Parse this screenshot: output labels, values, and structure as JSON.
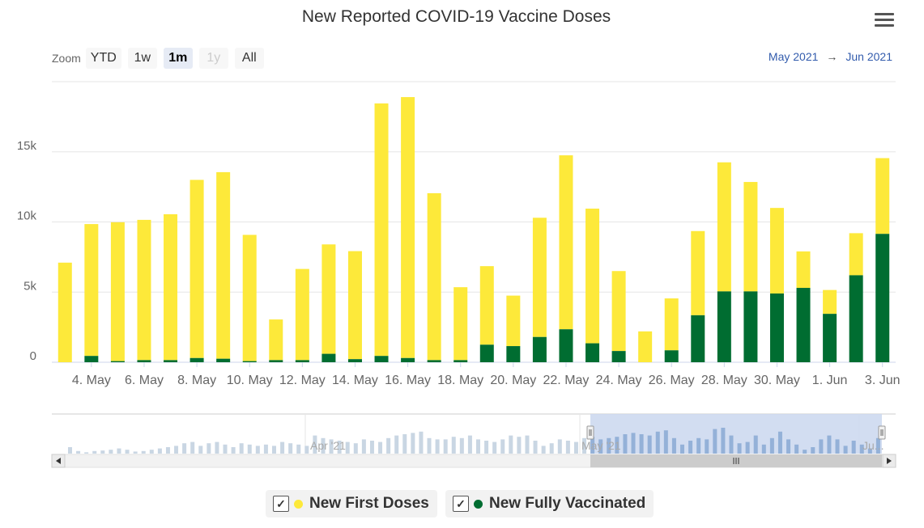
{
  "title": "New Reported COVID-19 Vaccine Doses",
  "menu_icon": "hamburger-menu-icon",
  "zoom": {
    "label": "Zoom",
    "buttons": [
      {
        "label": "YTD",
        "state": "normal"
      },
      {
        "label": "1w",
        "state": "normal"
      },
      {
        "label": "1m",
        "state": "active"
      },
      {
        "label": "1y",
        "state": "disabled"
      },
      {
        "label": "All",
        "state": "normal"
      }
    ]
  },
  "range": {
    "from": "May 2021",
    "arrow": "→",
    "to": "Jun 2021"
  },
  "colors": {
    "first": "#fde93a",
    "full": "#006d31",
    "grid": "#e6e6e6",
    "navigator_bar": "#c9d6e3",
    "navigator_mask": "#cdd9ef"
  },
  "legend": [
    {
      "label": "New First Doses",
      "color": "#fde93a",
      "checked": true
    },
    {
      "label": "New Fully Vaccinated",
      "color": "#006d31",
      "checked": true
    }
  ],
  "chart_data": {
    "type": "bar",
    "stacked": true,
    "title": "New Reported COVID-19 Vaccine Doses",
    "xlabel": "",
    "ylabel": "",
    "ylim": [
      0,
      20000
    ],
    "y_ticks": [
      "0",
      "5k",
      "10k",
      "15k"
    ],
    "x_ticks": [
      "4. May",
      "6. May",
      "8. May",
      "10. May",
      "12. May",
      "14. May",
      "16. May",
      "18. May",
      "20. May",
      "22. May",
      "24. May",
      "26. May",
      "28. May",
      "30. May",
      "1. Jun",
      "3. Jun"
    ],
    "categories": [
      "3. May",
      "4. May",
      "5. May",
      "6. May",
      "7. May",
      "8. May",
      "9. May",
      "10. May",
      "11. May",
      "12. May",
      "13. May",
      "14. May",
      "15. May",
      "16. May",
      "17. May",
      "18. May",
      "19. May",
      "20. May",
      "21. May",
      "22. May",
      "23. May",
      "24. May",
      "25. May",
      "26. May",
      "27. May",
      "28. May",
      "29. May",
      "30. May",
      "31. May",
      "1. Jun",
      "2. Jun",
      "3. Jun"
    ],
    "series": [
      {
        "name": "New First Doses",
        "values": [
          7100,
          9400,
          9900,
          10000,
          10400,
          12700,
          13300,
          9000,
          2900,
          6500,
          7800,
          7700,
          18000,
          18600,
          11900,
          5200,
          5600,
          3600,
          8500,
          12400,
          9600,
          5700,
          2200,
          3700,
          6000,
          9200,
          7800,
          6100,
          2600,
          1700,
          3000,
          5400
        ]
      },
      {
        "name": "New Fully Vaccinated",
        "values": [
          0,
          450,
          80,
          150,
          150,
          300,
          250,
          80,
          150,
          150,
          600,
          220,
          450,
          300,
          150,
          150,
          1250,
          1150,
          1800,
          2350,
          1350,
          800,
          0,
          850,
          3350,
          5050,
          5050,
          4900,
          5300,
          3450,
          6200,
          9150
        ]
      }
    ],
    "grid": true,
    "legend_position": "bottom-center",
    "navigator": {
      "labels": [
        "Apr '21",
        "May '21",
        "Ju..."
      ],
      "values": [
        0.25,
        0.1,
        0.05,
        0.1,
        0.12,
        0.15,
        0.2,
        0.15,
        0.08,
        0.1,
        0.15,
        0.2,
        0.25,
        0.3,
        0.4,
        0.45,
        0.3,
        0.4,
        0.45,
        0.35,
        0.25,
        0.4,
        0.35,
        0.3,
        0.35,
        0.3,
        0.45,
        0.4,
        0.35,
        0.3,
        0.7,
        0.6,
        0.55,
        0.5,
        0.45,
        0.4,
        0.55,
        0.5,
        0.45,
        0.6,
        0.7,
        0.75,
        0.8,
        0.85,
        0.6,
        0.55,
        0.55,
        0.65,
        0.6,
        0.7,
        0.55,
        0.5,
        0.45,
        0.55,
        0.7,
        0.65,
        0.7,
        0.5,
        0.3,
        0.4,
        0.55,
        0.5,
        0.45,
        0.6,
        0.65,
        0.55,
        0.6,
        0.65,
        0.75,
        0.8,
        0.75,
        0.7,
        0.85,
        0.9,
        0.6,
        0.35,
        0.5,
        0.6,
        0.55,
        0.95,
        1.0,
        0.7,
        0.4,
        0.45,
        0.7,
        0.35,
        0.6,
        0.85,
        0.55,
        0.35,
        0.15,
        0.25,
        0.55,
        0.7,
        0.55,
        0.3,
        0.5,
        0.35,
        0.2,
        0.6
      ]
    }
  }
}
